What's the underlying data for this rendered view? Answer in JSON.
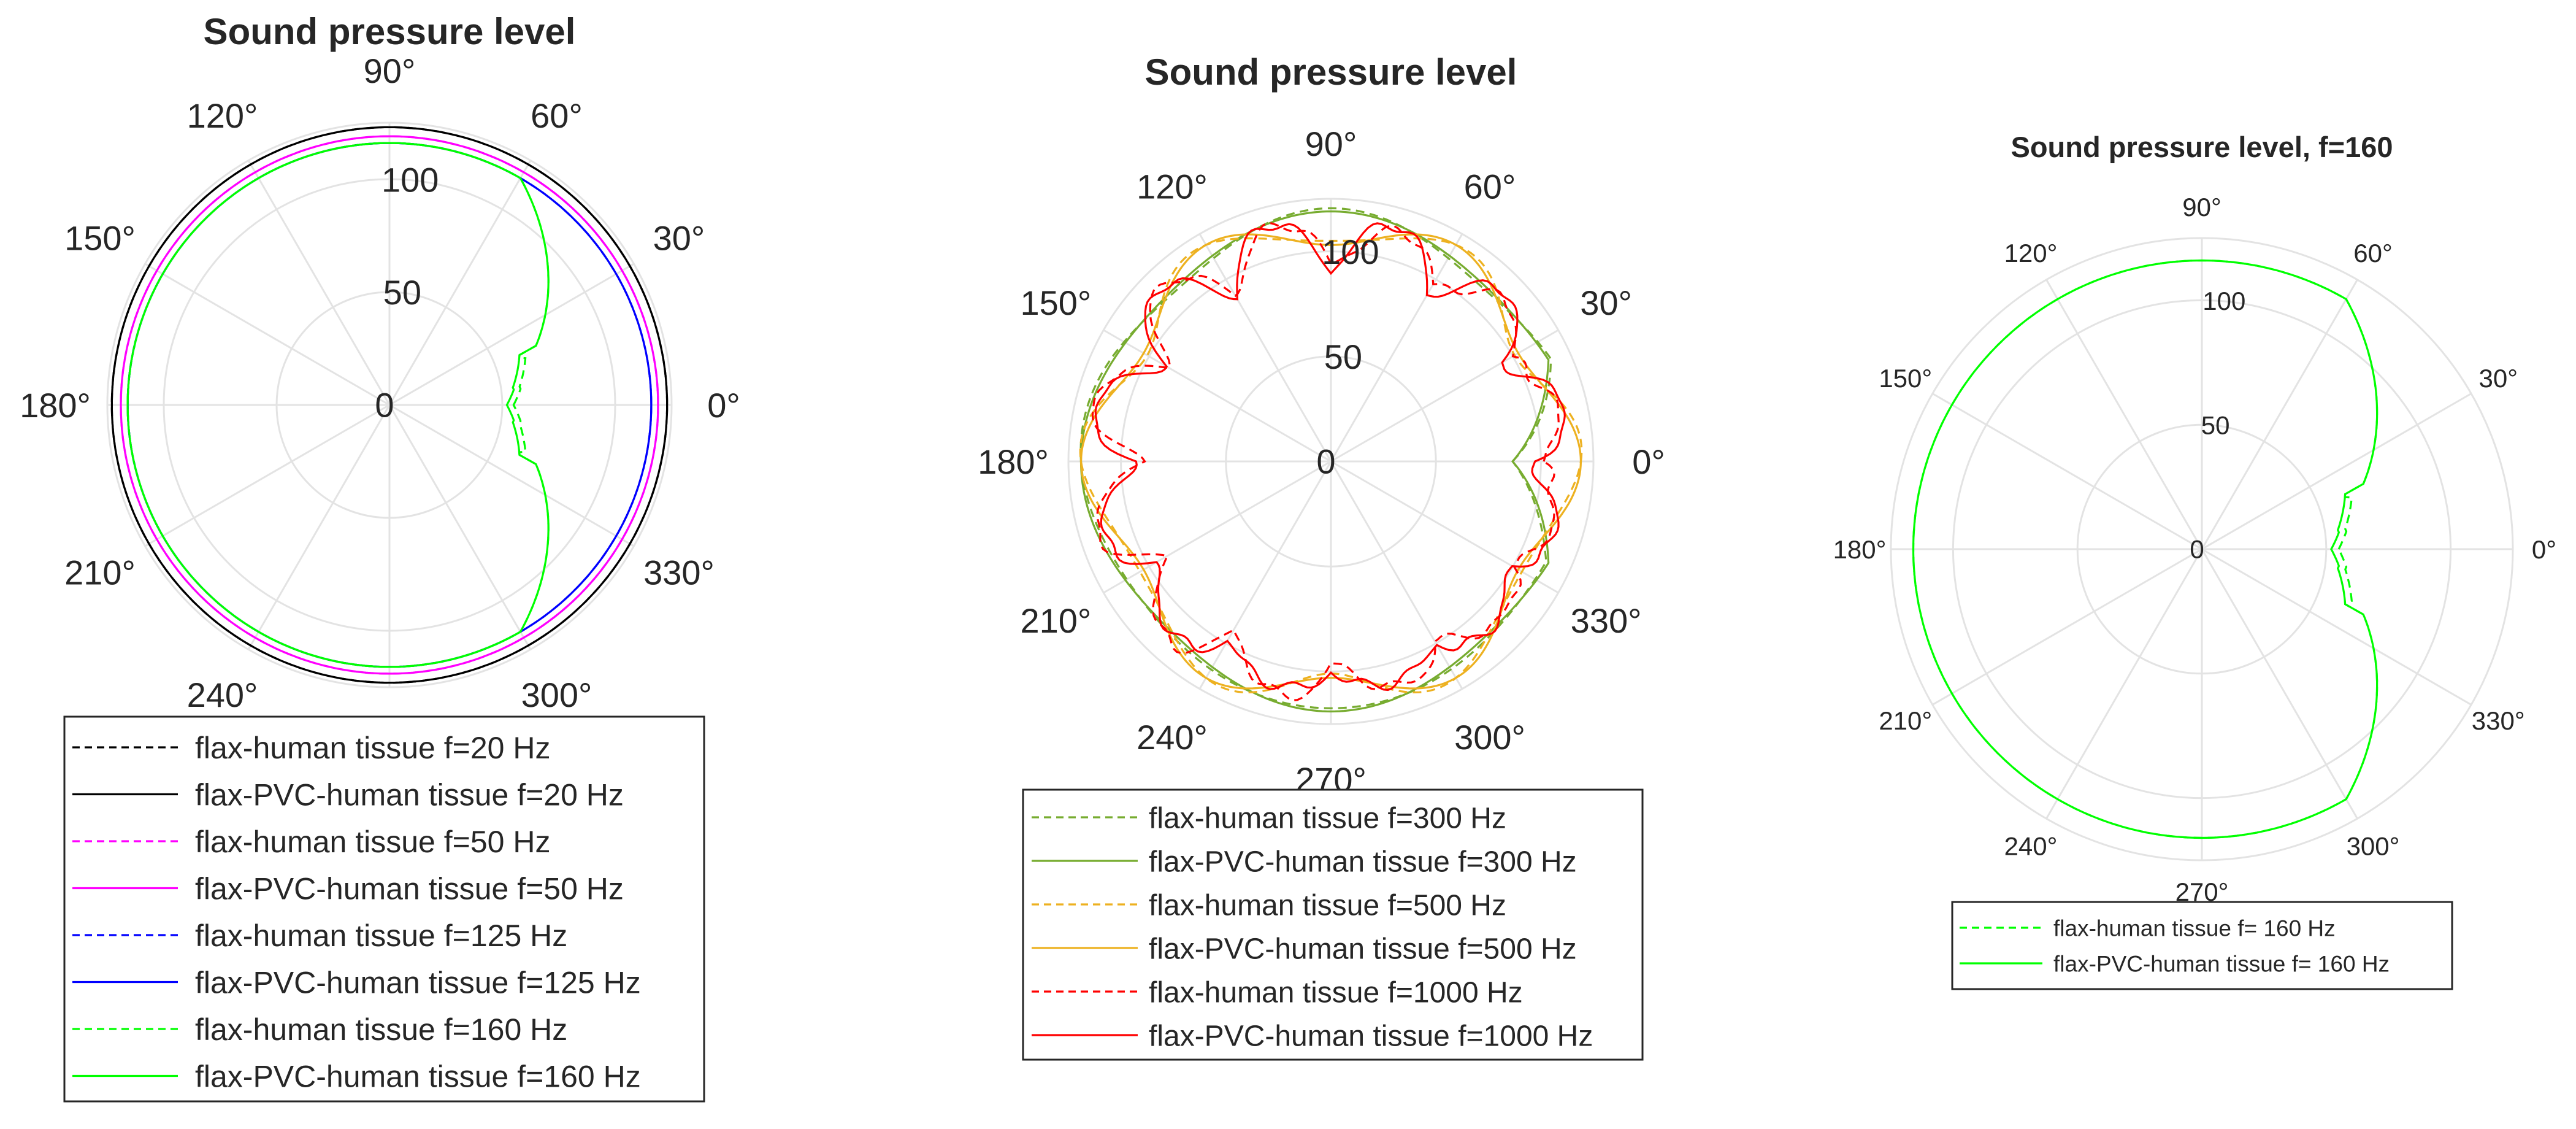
{
  "chart_data": [
    {
      "type": "polar",
      "title": "Sound pressure level",
      "angle_ticks": [
        "0°",
        "30°",
        "60°",
        "90°",
        "120°",
        "150°",
        "180°",
        "210°",
        "240°",
        "270°",
        "300°",
        "330°"
      ],
      "r_ticks": [
        "0",
        "50",
        "100"
      ],
      "r_range": [
        0,
        125
      ],
      "grid": true,
      "legend_placement": "bottom",
      "series": [
        {
          "name": "flax-human tissue f=20 Hz",
          "color": "#000000",
          "style": "dashed",
          "r_base": 123
        },
        {
          "name": "flax-PVC-human tissue f=20 Hz",
          "color": "#000000",
          "style": "solid",
          "r_base": 123
        },
        {
          "name": "flax-human tissue f=50 Hz",
          "color": "#ff00ff",
          "style": "dashed",
          "r_base": 119
        },
        {
          "name": "flax-PVC-human tissue f=50 Hz",
          "color": "#ff00ff",
          "style": "solid",
          "r_base": 119
        },
        {
          "name": "flax-human tissue f=125 Hz",
          "color": "#0000ff",
          "style": "dashed",
          "r_base": 116
        },
        {
          "name": "flax-PVC-human tissue f=125 Hz",
          "color": "#0000ff",
          "style": "solid",
          "r_base": 116
        },
        {
          "name": "flax-human tissue f=160 Hz",
          "color": "#00ff00",
          "style": "dashed",
          "r_base": 116
        },
        {
          "name": "flax-PVC-human tissue f=160 Hz",
          "color": "#00ff00",
          "style": "solid",
          "r_base": 116
        }
      ]
    },
    {
      "type": "polar",
      "title": "Sound pressure level",
      "angle_ticks": [
        "0°",
        "30°",
        "60°",
        "90°",
        "120°",
        "150°",
        "180°",
        "210°",
        "240°",
        "270°",
        "300°",
        "330°"
      ],
      "r_ticks": [
        "0",
        "50",
        "100"
      ],
      "r_range": [
        0,
        125
      ],
      "grid": true,
      "legend_placement": "bottom",
      "series": [
        {
          "name": "flax-human tissue f=300 Hz",
          "color": "#77ac30",
          "style": "dashed",
          "r_base": 117
        },
        {
          "name": "flax-PVC-human tissue f=300 Hz",
          "color": "#77ac30",
          "style": "solid",
          "r_base": 117
        },
        {
          "name": "flax-human tissue f=500 Hz",
          "color": "#edb120",
          "style": "dashed",
          "r_base": 117
        },
        {
          "name": "flax-PVC-human tissue f=500 Hz",
          "color": "#edb120",
          "style": "solid",
          "r_base": 117
        },
        {
          "name": "flax-human tissue f=1000 Hz",
          "color": "#ff0000",
          "style": "dashed",
          "r_base": 112
        },
        {
          "name": "flax-PVC-human tissue f=1000 Hz",
          "color": "#ff0000",
          "style": "solid",
          "r_base": 112
        }
      ]
    },
    {
      "type": "polar",
      "title": "Sound pressure level, f=160",
      "angle_ticks": [
        "0°",
        "30°",
        "60°",
        "90°",
        "120°",
        "150°",
        "180°",
        "210°",
        "240°",
        "270°",
        "300°",
        "330°"
      ],
      "r_ticks": [
        "0",
        "50",
        "100"
      ],
      "r_range": [
        0,
        125
      ],
      "grid": true,
      "legend_placement": "bottom",
      "series": [
        {
          "name": "flax-human tissue f= 160 Hz",
          "color": "#00ff00",
          "style": "dashed",
          "r_base": 116
        },
        {
          "name": "flax-PVC-human tissue f= 160 Hz",
          "color": "#00ff00",
          "style": "solid",
          "r_base": 116
        }
      ]
    }
  ]
}
